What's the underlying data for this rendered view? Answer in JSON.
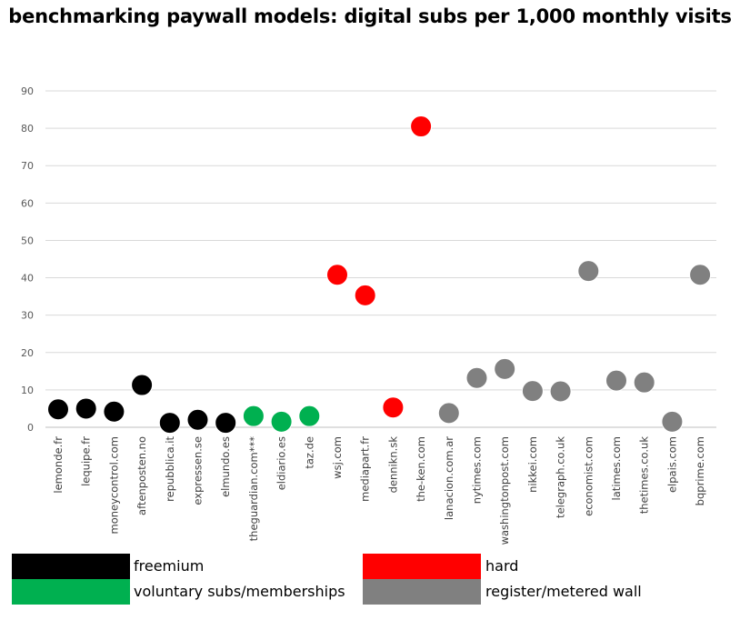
{
  "chart_data": {
    "type": "scatter",
    "title": "benchmarking paywall models: digital subs per 1,000 monthly visits",
    "xlabel": "",
    "ylabel": "",
    "ylim": [
      0,
      90
    ],
    "yticks": [
      0,
      10,
      20,
      30,
      40,
      50,
      60,
      70,
      80,
      90
    ],
    "grid": true,
    "legend_position": "bottom",
    "categories": [
      "lemonde.fr",
      "lequipe.fr",
      "moneycontrol.com",
      "aftenposten.no",
      "repubblica.it",
      "expressen.se",
      "elmundo.es",
      "theguardian.com***",
      "eldiario.es",
      "taz.de",
      "wsj.com",
      "mediapart.fr",
      "dennikn.sk",
      "the-ken.com",
      "lanacion.com.ar",
      "nytimes.com",
      "washingtonpost.com",
      "nikkei.com",
      "telegraph.co.uk",
      "economist.com",
      "latimes.com",
      "thetimes.co.uk",
      "elpais.com",
      "bqprime.com"
    ],
    "values": [
      4.8,
      5.0,
      4.2,
      11.3,
      1.2,
      2.0,
      1.2,
      3.0,
      1.5,
      3.0,
      40.8,
      35.3,
      5.3,
      80.5,
      3.8,
      13.2,
      15.6,
      9.7,
      9.6,
      41.8,
      12.5,
      12.0,
      1.5,
      40.8
    ],
    "groups": [
      "freemium",
      "freemium",
      "freemium",
      "freemium",
      "freemium",
      "freemium",
      "freemium",
      "voluntary",
      "voluntary",
      "voluntary",
      "hard",
      "hard",
      "hard",
      "hard",
      "metered",
      "metered",
      "metered",
      "metered",
      "metered",
      "metered",
      "metered",
      "metered",
      "metered",
      "metered"
    ],
    "series": [
      {
        "key": "freemium",
        "name": "freemium",
        "color": "#000000"
      },
      {
        "key": "hard",
        "name": "hard",
        "color": "#ff0000"
      },
      {
        "key": "voluntary",
        "name": "voluntary subs/memberships",
        "color": "#00b050"
      },
      {
        "key": "metered",
        "name": "register/metered wall",
        "color": "#808080"
      }
    ]
  }
}
